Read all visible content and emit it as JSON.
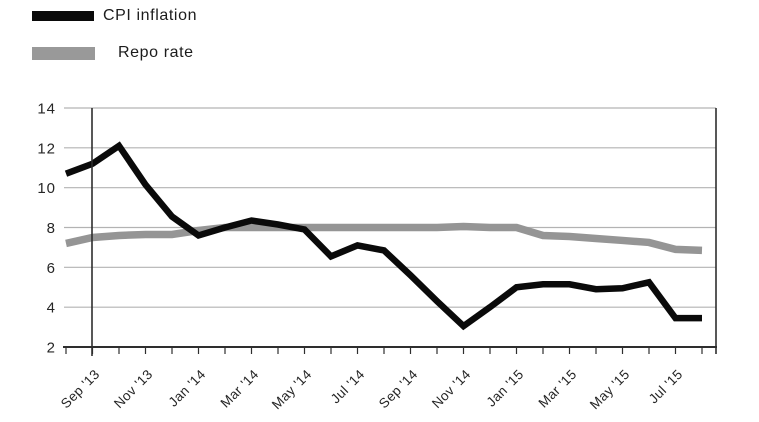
{
  "legend": {
    "items": [
      {
        "label": "CPI inflation",
        "color": "#0a0a0a"
      },
      {
        "label": "Repo rate",
        "color": "#999999"
      }
    ]
  },
  "chart_data": {
    "type": "line",
    "x": [
      "Aug '13",
      "Sep '13",
      "Oct '13",
      "Nov '13",
      "Dec '13",
      "Jan '14",
      "Feb '14",
      "Mar '14",
      "Apr '14",
      "May '14",
      "Jun '14",
      "Jul '14",
      "Aug '14",
      "Sep '14",
      "Oct '14",
      "Nov '14",
      "Dec '14",
      "Jan '15",
      "Feb '15",
      "Mar '15",
      "Apr '15",
      "May '15",
      "Jun '15",
      "Jul '15",
      "Aug '15"
    ],
    "x_labels_shown": [
      "Sep '13",
      "Nov '13",
      "Jan '14",
      "Mar '14",
      "May '14",
      "Jul '14",
      "Sep '14",
      "Nov '14",
      "Jan '15",
      "Mar '15",
      "May '15",
      "Jul '15"
    ],
    "label_every": 2,
    "label_start_index": 1,
    "x_label_rotation_deg": -45,
    "series": [
      {
        "name": "CPI inflation",
        "color": "#0a0a0a",
        "stroke_width": 6.5,
        "values": [
          10.7,
          11.2,
          12.1,
          10.15,
          8.55,
          7.6,
          8.0,
          8.35,
          8.15,
          7.9,
          6.55,
          7.1,
          6.85,
          5.6,
          4.3,
          3.05,
          4.0,
          5.0,
          5.15,
          5.15,
          4.9,
          4.95,
          5.25,
          3.45,
          3.45
        ]
      },
      {
        "name": "Repo rate",
        "color": "#959595",
        "stroke_width": 7.5,
        "values": [
          7.2,
          7.5,
          7.6,
          7.65,
          7.65,
          7.85,
          8.0,
          8.0,
          8.0,
          8.0,
          8.0,
          8.0,
          8.0,
          8.0,
          8.0,
          8.05,
          8.0,
          8.0,
          7.6,
          7.55,
          7.45,
          7.35,
          7.25,
          6.9,
          6.85
        ]
      }
    ],
    "ylim": [
      2,
      14
    ],
    "y_ticks": [
      "2",
      "4",
      "6",
      "8",
      "10",
      "12",
      "14"
    ],
    "grid": "horizontal",
    "legend_position": "top-left",
    "title": "",
    "xlabel": "",
    "ylabel": "",
    "colors": {
      "background": "#ffffff",
      "gridline": "#b3b3b3",
      "axis": "#2e2e2e",
      "tick_text": "#262626"
    }
  }
}
